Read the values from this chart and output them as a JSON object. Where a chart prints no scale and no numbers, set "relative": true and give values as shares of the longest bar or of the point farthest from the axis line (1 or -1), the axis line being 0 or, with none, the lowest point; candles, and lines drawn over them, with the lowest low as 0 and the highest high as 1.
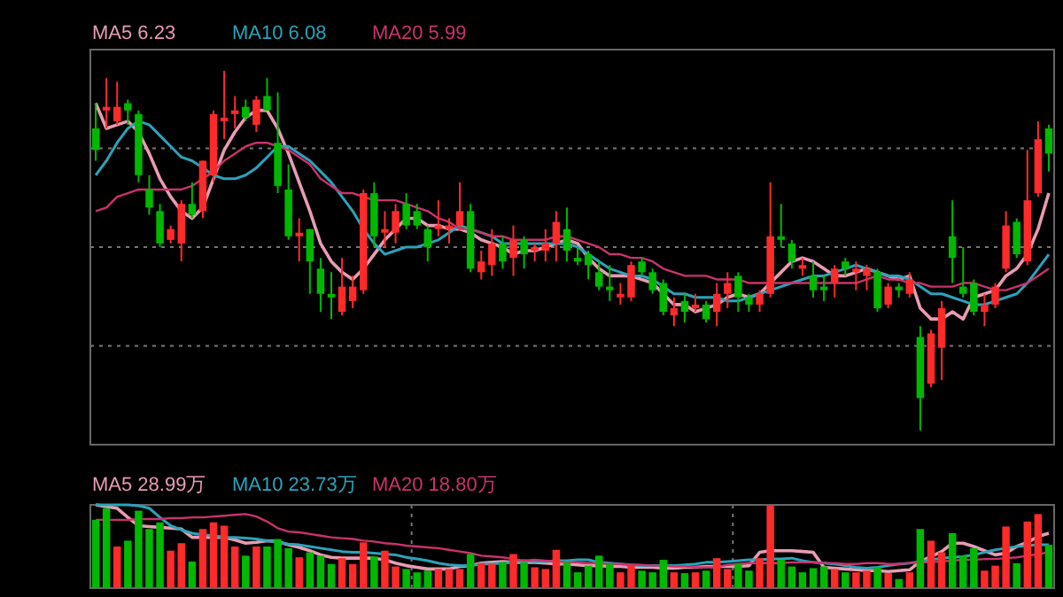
{
  "chart_data": [
    {
      "type": "candlestick",
      "relative": true,
      "grid": "y",
      "legend": "top left",
      "categories": [
        null,
        null,
        null,
        null,
        null,
        null,
        null,
        null,
        null,
        null,
        null,
        null,
        null,
        null,
        null,
        null,
        null,
        null,
        null,
        null,
        null,
        null,
        null,
        null,
        null,
        null,
        null,
        null,
        null,
        null,
        null,
        null,
        null,
        null,
        null,
        null,
        null,
        null,
        null,
        null,
        null,
        null,
        null,
        null,
        null,
        null,
        null,
        null,
        null,
        null,
        null,
        null,
        null,
        null,
        null,
        null,
        null,
        null,
        null,
        null,
        null,
        null,
        null,
        null,
        null,
        null,
        null,
        null,
        null,
        null,
        null,
        null,
        null,
        null,
        null,
        null,
        null,
        null,
        null,
        null,
        null,
        null,
        null,
        null,
        null,
        null,
        null,
        null,
        null,
        null
      ],
      "ohlc": [
        [
          0.84,
          0.91,
          0.75,
          0.78
        ],
        [
          0.89,
          0.98,
          0.84,
          0.9
        ],
        [
          0.86,
          0.97,
          0.85,
          0.9
        ],
        [
          0.91,
          0.92,
          0.85,
          0.89
        ],
        [
          0.88,
          0.89,
          0.69,
          0.71
        ],
        [
          0.67,
          0.71,
          0.6,
          0.62
        ],
        [
          0.61,
          0.63,
          0.51,
          0.52
        ],
        [
          0.53,
          0.57,
          0.52,
          0.56
        ],
        [
          0.52,
          0.64,
          0.47,
          0.63
        ],
        [
          0.63,
          0.69,
          0.59,
          0.6
        ],
        [
          0.61,
          0.75,
          0.59,
          0.75
        ],
        [
          0.71,
          0.89,
          0.69,
          0.88
        ],
        [
          0.86,
          1,
          0.81,
          0.87
        ],
        [
          0.88,
          0.93,
          0.84,
          0.89
        ],
        [
          0.9,
          0.92,
          0.86,
          0.87
        ],
        [
          0.85,
          0.93,
          0.83,
          0.92
        ],
        [
          0.93,
          0.98,
          0.89,
          0.89
        ],
        [
          0.8,
          0.94,
          0.66,
          0.68
        ],
        [
          0.67,
          0.74,
          0.53,
          0.54
        ],
        [
          0.54,
          0.59,
          0.47,
          0.55
        ],
        [
          0.56,
          0.56,
          0.38,
          0.47
        ],
        [
          0.45,
          0.48,
          0.33,
          0.38
        ],
        [
          0.38,
          0.44,
          0.31,
          0.37
        ],
        [
          0.33,
          0.48,
          0.32,
          0.4
        ],
        [
          0.36,
          0.43,
          0.34,
          0.4
        ],
        [
          0.39,
          0.67,
          0.38,
          0.66
        ],
        [
          0.66,
          0.69,
          0.51,
          0.54
        ],
        [
          0.55,
          0.61,
          0.51,
          0.56
        ],
        [
          0.55,
          0.63,
          0.52,
          0.61
        ],
        [
          0.63,
          0.66,
          0.56,
          0.57
        ],
        [
          0.61,
          0.63,
          0.56,
          0.57
        ],
        [
          0.56,
          0.57,
          0.47,
          0.51
        ],
        [
          0.56,
          0.64,
          0.54,
          0.57
        ],
        [
          0.56,
          0.59,
          0.52,
          0.57
        ],
        [
          0.57,
          0.69,
          0.56,
          0.61
        ],
        [
          0.61,
          0.63,
          0.44,
          0.45
        ],
        [
          0.44,
          0.5,
          0.42,
          0.47
        ],
        [
          0.46,
          0.56,
          0.43,
          0.52
        ],
        [
          0.52,
          0.54,
          0.45,
          0.47
        ],
        [
          0.48,
          0.57,
          0.43,
          0.53
        ],
        [
          0.53,
          0.54,
          0.45,
          0.49
        ],
        [
          0.5,
          0.52,
          0.47,
          0.51
        ],
        [
          0.5,
          0.56,
          0.47,
          0.52
        ],
        [
          0.52,
          0.61,
          0.47,
          0.58
        ],
        [
          0.56,
          0.62,
          0.47,
          0.5
        ],
        [
          0.48,
          0.51,
          0.46,
          0.47
        ],
        [
          0.49,
          0.5,
          0.42,
          0.46
        ],
        [
          0.44,
          0.47,
          0.39,
          0.4
        ],
        [
          0.4,
          0.46,
          0.36,
          0.39
        ],
        [
          0.37,
          0.41,
          0.35,
          0.38
        ],
        [
          0.37,
          0.47,
          0.36,
          0.46
        ],
        [
          0.47,
          0.48,
          0.43,
          0.44
        ],
        [
          0.44,
          0.45,
          0.38,
          0.39
        ],
        [
          0.41,
          0.42,
          0.32,
          0.33
        ],
        [
          0.32,
          0.37,
          0.29,
          0.34
        ],
        [
          0.36,
          0.38,
          0.3,
          0.33
        ],
        [
          0.34,
          0.38,
          0.33,
          0.35
        ],
        [
          0.35,
          0.36,
          0.3,
          0.31
        ],
        [
          0.33,
          0.41,
          0.29,
          0.38
        ],
        [
          0.38,
          0.44,
          0.34,
          0.41
        ],
        [
          0.43,
          0.44,
          0.33,
          0.37
        ],
        [
          0.37,
          0.38,
          0.33,
          0.35
        ],
        [
          0.35,
          0.39,
          0.33,
          0.38
        ],
        [
          0.38,
          0.69,
          0.37,
          0.54
        ],
        [
          0.54,
          0.63,
          0.51,
          0.53
        ],
        [
          0.52,
          0.53,
          0.45,
          0.47
        ],
        [
          0.45,
          0.48,
          0.43,
          0.46
        ],
        [
          0.43,
          0.47,
          0.37,
          0.39
        ],
        [
          0.4,
          0.43,
          0.36,
          0.39
        ],
        [
          0.41,
          0.46,
          0.37,
          0.45
        ],
        [
          0.47,
          0.48,
          0.43,
          0.45
        ],
        [
          0.44,
          0.47,
          0.39,
          0.45
        ],
        [
          0.43,
          0.46,
          0.39,
          0.45
        ],
        [
          0.44,
          0.45,
          0.33,
          0.34
        ],
        [
          0.35,
          0.41,
          0.34,
          0.4
        ],
        [
          0.4,
          0.41,
          0.37,
          0.39
        ],
        [
          0.38,
          0.44,
          0.37,
          0.42
        ],
        [
          0.26,
          0.29,
          0,
          0.09
        ],
        [
          0.13,
          0.28,
          0.12,
          0.27
        ],
        [
          0.23,
          0.36,
          0.14,
          0.34
        ],
        [
          0.54,
          0.64,
          0.41,
          0.48
        ],
        [
          0.4,
          0.51,
          0.37,
          0.38
        ],
        [
          0.41,
          0.42,
          0.32,
          0.33
        ],
        [
          0.33,
          0.38,
          0.29,
          0.35
        ],
        [
          0.35,
          0.41,
          0.34,
          0.4
        ],
        [
          0.45,
          0.61,
          0.44,
          0.57
        ],
        [
          0.58,
          0.59,
          0.48,
          0.49
        ],
        [
          0.47,
          0.78,
          0.46,
          0.64
        ],
        [
          0.66,
          0.86,
          0.65,
          0.81
        ],
        [
          0.84,
          0.85,
          0.72,
          0.77
        ]
      ],
      "colors": [
        "#00b800",
        "#ff2a2a",
        "#ff2a2a",
        "#00b800",
        "#00b800",
        "#00b800",
        "#00b800",
        "#ff2a2a",
        "#ff2a2a",
        "#00b800",
        "#ff2a2a",
        "#ff2a2a",
        "#ff2a2a",
        "#ff2a2a",
        "#00b800",
        "#ff2a2a",
        "#00b800",
        "#00b800",
        "#00b800",
        "#ff2a2a",
        "#00b800",
        "#00b800",
        "#00b800",
        "#ff2a2a",
        "#ff2a2a",
        "#ff2a2a",
        "#00b800",
        "#ff2a2a",
        "#ff2a2a",
        "#00b800",
        "#00b800",
        "#00b800",
        "#ff2a2a",
        "#ff2a2a",
        "#ff2a2a",
        "#00b800",
        "#ff2a2a",
        "#ff2a2a",
        "#00b800",
        "#ff2a2a",
        "#00b800",
        "#ff2a2a",
        "#ff2a2a",
        "#ff2a2a",
        "#00b800",
        "#00b800",
        "#00b800",
        "#00b800",
        "#00b800",
        "#ff2a2a",
        "#ff2a2a",
        "#00b800",
        "#00b800",
        "#00b800",
        "#ff2a2a",
        "#00b800",
        "#ff2a2a",
        "#00b800",
        "#ff2a2a",
        "#ff2a2a",
        "#00b800",
        "#00b800",
        "#ff2a2a",
        "#ff2a2a",
        "#00b800",
        "#00b800",
        "#ff2a2a",
        "#00b800",
        "#00b800",
        "#ff2a2a",
        "#00b800",
        "#ff2a2a",
        "#ff2a2a",
        "#00b800",
        "#ff2a2a",
        "#00b800",
        "#ff2a2a",
        "#00b800",
        "#ff2a2a",
        "#ff2a2a",
        "#00b800",
        "#00b800",
        "#00b800",
        "#ff2a2a",
        "#ff2a2a",
        "#ff2a2a",
        "#00b800",
        "#ff2a2a",
        "#ff2a2a",
        "#00b800"
      ],
      "series": [
        {
          "type": "line",
          "name": "MA5 6.23",
          "color": "#e89cb2",
          "values": [
            0.91,
            0.84,
            0.85,
            0.86,
            0.83,
            0.77,
            0.7,
            0.65,
            0.61,
            0.59,
            0.62,
            0.7,
            0.78,
            0.83,
            0.87,
            0.89,
            0.89,
            0.84,
            0.77,
            0.69,
            0.61,
            0.52,
            0.47,
            0.44,
            0.42,
            0.45,
            0.49,
            0.53,
            0.56,
            0.59,
            0.59,
            0.57,
            0.57,
            0.56,
            0.56,
            0.55,
            0.53,
            0.52,
            0.51,
            0.49,
            0.5,
            0.5,
            0.51,
            0.52,
            0.53,
            0.52,
            0.48,
            0.45,
            0.43,
            0.43,
            0.43,
            0.42,
            0.41,
            0.38,
            0.35,
            0.35,
            0.33,
            0.34,
            0.35,
            0.37,
            0.38,
            0.37,
            0.38,
            0.41,
            0.44,
            0.47,
            0.48,
            0.47,
            0.45,
            0.43,
            0.43,
            0.44,
            0.45,
            0.44,
            0.43,
            0.42,
            0.43,
            0.34,
            0.31,
            0.31,
            0.33,
            0.31,
            0.37,
            0.38,
            0.39,
            0.43,
            0.45,
            0.49,
            0.56,
            0.66
          ]
        },
        {
          "type": "line",
          "name": "MA10 6.08",
          "color": "#2ba3ba",
          "values": [
            0.71,
            0.75,
            0.8,
            0.84,
            0.86,
            0.85,
            0.82,
            0.79,
            0.76,
            0.75,
            0.73,
            0.71,
            0.7,
            0.7,
            0.71,
            0.73,
            0.76,
            0.79,
            0.79,
            0.77,
            0.75,
            0.72,
            0.69,
            0.65,
            0.61,
            0.56,
            0.52,
            0.49,
            0.5,
            0.51,
            0.51,
            0.52,
            0.53,
            0.55,
            0.57,
            0.56,
            0.55,
            0.54,
            0.52,
            0.52,
            0.52,
            0.52,
            0.52,
            0.52,
            0.52,
            0.51,
            0.49,
            0.47,
            0.45,
            0.44,
            0.43,
            0.43,
            0.42,
            0.4,
            0.38,
            0.38,
            0.37,
            0.37,
            0.37,
            0.36,
            0.36,
            0.37,
            0.38,
            0.39,
            0.4,
            0.41,
            0.42,
            0.43,
            0.43,
            0.44,
            0.45,
            0.46,
            0.45,
            0.44,
            0.43,
            0.43,
            0.42,
            0.4,
            0.38,
            0.38,
            0.37,
            0.36,
            0.35,
            0.35,
            0.36,
            0.37,
            0.38,
            0.41,
            0.45,
            0.49
          ]
        },
        {
          "type": "line",
          "name": "MA20 5.99",
          "color": "#c9336c",
          "values": [
            0.61,
            0.62,
            0.65,
            0.66,
            0.67,
            0.67,
            0.67,
            0.67,
            0.67,
            0.68,
            0.7,
            0.72,
            0.75,
            0.77,
            0.79,
            0.8,
            0.8,
            0.79,
            0.78,
            0.76,
            0.74,
            0.7,
            0.68,
            0.66,
            0.66,
            0.65,
            0.64,
            0.64,
            0.64,
            0.63,
            0.62,
            0.61,
            0.59,
            0.58,
            0.56,
            0.56,
            0.55,
            0.54,
            0.54,
            0.53,
            0.53,
            0.53,
            0.53,
            0.54,
            0.54,
            0.53,
            0.52,
            0.51,
            0.49,
            0.49,
            0.48,
            0.48,
            0.47,
            0.45,
            0.44,
            0.43,
            0.43,
            0.43,
            0.42,
            0.42,
            0.42,
            0.41,
            0.41,
            0.41,
            0.41,
            0.41,
            0.41,
            0.41,
            0.41,
            0.41,
            0.41,
            0.41,
            0.42,
            0.43,
            0.42,
            0.42,
            0.41,
            0.41,
            0.4,
            0.4,
            0.4,
            0.41,
            0.41,
            0.4,
            0.39,
            0.39,
            0.4,
            0.41,
            0.43,
            0.45
          ]
        }
      ]
    },
    {
      "type": "bar",
      "relative": true,
      "grid": "x",
      "legend": "top left",
      "categories": [
        null,
        null,
        null,
        null,
        null,
        null,
        null,
        null,
        null,
        null,
        null,
        null,
        null,
        null,
        null,
        null,
        null,
        null,
        null,
        null,
        null,
        null,
        null,
        null,
        null,
        null,
        null,
        null,
        null,
        null,
        null,
        null,
        null,
        null,
        null,
        null,
        null,
        null,
        null,
        null,
        null,
        null,
        null,
        null,
        null,
        null,
        null,
        null,
        null,
        null,
        null,
        null,
        null,
        null,
        null,
        null,
        null,
        null,
        null,
        null,
        null,
        null,
        null,
        null,
        null,
        null,
        null,
        null,
        null,
        null,
        null,
        null,
        null,
        null,
        null,
        null,
        null,
        null,
        null,
        null,
        null,
        null,
        null,
        null,
        null,
        null,
        null,
        null,
        null,
        null
      ],
      "values": [
        0.82,
        0.96,
        0.5,
        0.57,
        0.93,
        0.71,
        0.79,
        0.45,
        0.54,
        0.32,
        0.71,
        0.79,
        0.75,
        0.5,
        0.39,
        0.5,
        0.5,
        0.59,
        0.48,
        0.37,
        0.43,
        0.39,
        0.29,
        0.36,
        0.29,
        0.55,
        0.38,
        0.45,
        0.26,
        0.23,
        0.19,
        0.21,
        0.23,
        0.23,
        0.23,
        0.41,
        0.3,
        0.29,
        0.31,
        0.41,
        0.31,
        0.25,
        0.23,
        0.46,
        0.31,
        0.19,
        0.27,
        0.39,
        0.29,
        0.19,
        0.27,
        0.21,
        0.19,
        0.34,
        0.19,
        0.18,
        0.19,
        0.21,
        0.36,
        0.23,
        0.29,
        0.21,
        0.36,
        1,
        0.34,
        0.26,
        0.19,
        0.24,
        0.26,
        0.23,
        0.19,
        0.19,
        0.21,
        0.25,
        0.18,
        0.11,
        0.19,
        0.71,
        0.57,
        0.43,
        0.66,
        0.39,
        0.48,
        0.21,
        0.27,
        0.74,
        0.3,
        0.8,
        0.89,
        0.52
      ],
      "colors": [
        "#00b800",
        "#00b800",
        "#ff2a2a",
        "#00b800",
        "#00b800",
        "#00b800",
        "#00b800",
        "#ff2a2a",
        "#ff2a2a",
        "#00b800",
        "#ff2a2a",
        "#ff2a2a",
        "#ff2a2a",
        "#ff2a2a",
        "#00b800",
        "#ff2a2a",
        "#00b800",
        "#00b800",
        "#00b800",
        "#ff2a2a",
        "#00b800",
        "#00b800",
        "#00b800",
        "#ff2a2a",
        "#ff2a2a",
        "#ff2a2a",
        "#00b800",
        "#ff2a2a",
        "#ff2a2a",
        "#00b800",
        "#00b800",
        "#00b800",
        "#ff2a2a",
        "#ff2a2a",
        "#ff2a2a",
        "#00b800",
        "#ff2a2a",
        "#ff2a2a",
        "#00b800",
        "#ff2a2a",
        "#00b800",
        "#ff2a2a",
        "#ff2a2a",
        "#ff2a2a",
        "#00b800",
        "#00b800",
        "#00b800",
        "#00b800",
        "#00b800",
        "#ff2a2a",
        "#ff2a2a",
        "#00b800",
        "#00b800",
        "#00b800",
        "#ff2a2a",
        "#00b800",
        "#ff2a2a",
        "#00b800",
        "#ff2a2a",
        "#ff2a2a",
        "#00b800",
        "#00b800",
        "#ff2a2a",
        "#ff2a2a",
        "#00b800",
        "#00b800",
        "#00b800",
        "#00b800",
        "#00b800",
        "#ff2a2a",
        "#00b800",
        "#ff2a2a",
        "#ff2a2a",
        "#00b800",
        "#ff2a2a",
        "#00b800",
        "#ff2a2a",
        "#00b800",
        "#ff2a2a",
        "#ff2a2a",
        "#00b800",
        "#00b800",
        "#00b800",
        "#ff2a2a",
        "#ff2a2a",
        "#ff2a2a",
        "#00b800",
        "#ff2a2a",
        "#ff2a2a",
        "#00b800"
      ],
      "series": [
        {
          "type": "line",
          "name": "MA5 28.99万",
          "color": "#e89cb2",
          "values": [
            1,
            0.98,
            0.96,
            0.85,
            0.75,
            0.74,
            0.73,
            0.72,
            0.71,
            0.61,
            0.61,
            0.61,
            0.61,
            0.58,
            0.54,
            0.55,
            0.57,
            0.56,
            0.52,
            0.49,
            0.45,
            0.4,
            0.37,
            0.36,
            0.36,
            0.36,
            0.36,
            0.34,
            0.3,
            0.27,
            0.25,
            0.23,
            0.23,
            0.23,
            0.26,
            0.27,
            0.3,
            0.31,
            0.32,
            0.31,
            0.31,
            0.31,
            0.3,
            0.29,
            0.29,
            0.28,
            0.27,
            0.27,
            0.26,
            0.26,
            0.25,
            0.25,
            0.25,
            0.24,
            0.24,
            0.25,
            0.25,
            0.26,
            0.26,
            0.26,
            0.26,
            0.27,
            0.43,
            0.45,
            0.45,
            0.45,
            0.44,
            0.43,
            0.25,
            0.24,
            0.23,
            0.22,
            0.21,
            0.21,
            0.2,
            0.21,
            0.22,
            0.32,
            0.38,
            0.44,
            0.54,
            0.54,
            0.5,
            0.45,
            0.4,
            0.42,
            0.5,
            0.55,
            0.62,
            0.66
          ]
        },
        {
          "type": "line",
          "name": "MA10 23.73万",
          "color": "#2ba3ba",
          "values": [
            1,
            1,
            1,
            1,
            0.99,
            0.96,
            0.85,
            0.75,
            0.7,
            0.66,
            0.64,
            0.63,
            0.61,
            0.61,
            0.6,
            0.59,
            0.57,
            0.55,
            0.53,
            0.52,
            0.5,
            0.48,
            0.46,
            0.44,
            0.43,
            0.43,
            0.42,
            0.41,
            0.4,
            0.37,
            0.35,
            0.33,
            0.3,
            0.28,
            0.27,
            0.27,
            0.29,
            0.29,
            0.3,
            0.31,
            0.33,
            0.32,
            0.32,
            0.33,
            0.33,
            0.34,
            0.34,
            0.31,
            0.3,
            0.29,
            0.28,
            0.27,
            0.27,
            0.27,
            0.27,
            0.28,
            0.29,
            0.31,
            0.31,
            0.32,
            0.33,
            0.34,
            0.34,
            0.35,
            0.35,
            0.36,
            0.33,
            0.31,
            0.3,
            0.29,
            0.27,
            0.25,
            0.24,
            0.25,
            0.27,
            0.29,
            0.3,
            0.32,
            0.34,
            0.36,
            0.37,
            0.38,
            0.4,
            0.43,
            0.46,
            0.48,
            0.5,
            0.51,
            0.52,
            0.52
          ]
        },
        {
          "type": "line",
          "name": "MA20 18.80万",
          "color": "#c9336c",
          "values": [
            0.82,
            0.82,
            0.82,
            0.82,
            0.83,
            0.83,
            0.83,
            0.84,
            0.84,
            0.85,
            0.85,
            0.86,
            0.87,
            0.88,
            0.89,
            0.86,
            0.8,
            0.72,
            0.68,
            0.67,
            0.65,
            0.63,
            0.61,
            0.6,
            0.59,
            0.57,
            0.56,
            0.54,
            0.53,
            0.51,
            0.5,
            0.49,
            0.48,
            0.46,
            0.44,
            0.42,
            0.39,
            0.38,
            0.37,
            0.35,
            0.33,
            0.34,
            0.33,
            0.32,
            0.31,
            0.31,
            0.3,
            0.3,
            0.29,
            0.29,
            0.28,
            0.28,
            0.27,
            0.27,
            0.26,
            0.26,
            0.25,
            0.25,
            0.25,
            0.28,
            0.29,
            0.3,
            0.3,
            0.3,
            0.3,
            0.31,
            0.31,
            0.31,
            0.3,
            0.3,
            0.29,
            0.29,
            0.3,
            0.3,
            0.29,
            0.29,
            0.3,
            0.31,
            0.31,
            0.32,
            0.33,
            0.34,
            0.34,
            0.35,
            0.35,
            0.36,
            0.37,
            0.39,
            0.41,
            0.43
          ]
        }
      ]
    }
  ]
}
